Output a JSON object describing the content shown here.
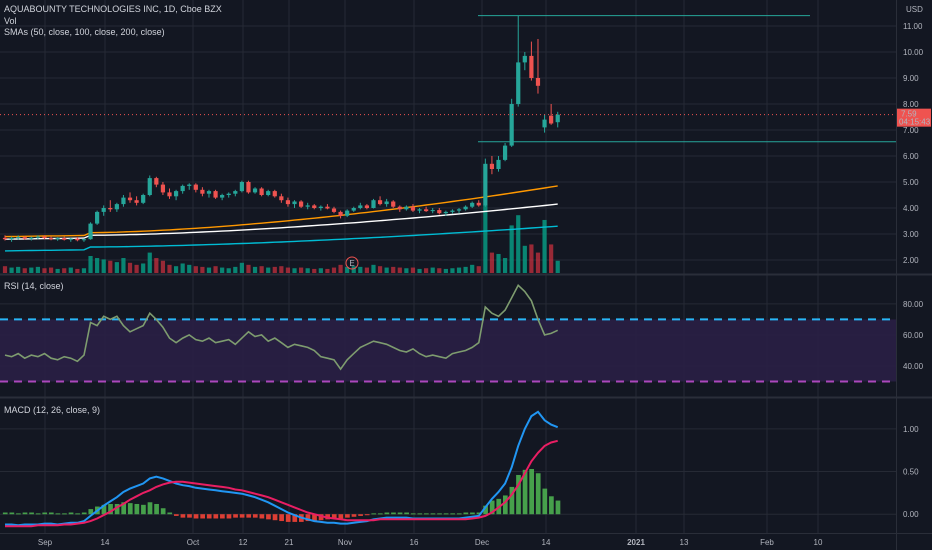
{
  "chart_data": [
    {
      "type": "candlestick",
      "pane": "price",
      "title": "AQUABOUNTY TECHNOLOGIES INC, 1D, Cboe BZX",
      "volume_label": "Vol",
      "sma_label": "SMAs (50, close, 100, close, 200, close)",
      "currency": "USD",
      "yticks": [
        "2.00",
        "3.00",
        "4.00",
        "5.00",
        "6.00",
        "7.00",
        "8.00",
        "9.00",
        "10.00",
        "11.00"
      ],
      "ylim": [
        1.5,
        12.0
      ],
      "last_price": "7.59",
      "countdown": "04:15:43",
      "earnings_marker": "E",
      "horizontal_lines": [
        11.4,
        6.55
      ],
      "candles": [
        [
          2.85,
          2.95,
          2.75,
          2.8
        ],
        [
          2.8,
          2.9,
          2.7,
          2.85
        ],
        [
          2.85,
          2.95,
          2.78,
          2.88
        ],
        [
          2.88,
          2.92,
          2.78,
          2.82
        ],
        [
          2.82,
          2.9,
          2.75,
          2.86
        ],
        [
          2.86,
          2.95,
          2.8,
          2.9
        ],
        [
          2.9,
          2.95,
          2.8,
          2.84
        ],
        [
          2.84,
          2.9,
          2.76,
          2.8
        ],
        [
          2.8,
          2.88,
          2.74,
          2.84
        ],
        [
          2.84,
          2.9,
          2.75,
          2.78
        ],
        [
          2.78,
          2.85,
          2.7,
          2.82
        ],
        [
          2.82,
          2.88,
          2.72,
          2.76
        ],
        [
          2.76,
          2.82,
          2.7,
          2.8
        ],
        [
          2.8,
          3.45,
          2.78,
          3.4
        ],
        [
          3.4,
          3.9,
          3.35,
          3.85
        ],
        [
          3.85,
          4.1,
          3.7,
          4.0
        ],
        [
          4.0,
          4.3,
          3.85,
          3.95
        ],
        [
          3.95,
          4.2,
          3.85,
          4.15
        ],
        [
          4.15,
          4.5,
          4.05,
          4.4
        ],
        [
          4.4,
          4.6,
          4.2,
          4.3
        ],
        [
          4.3,
          4.45,
          4.1,
          4.2
        ],
        [
          4.2,
          4.55,
          4.15,
          4.5
        ],
        [
          4.5,
          5.25,
          4.45,
          5.15
        ],
        [
          5.15,
          5.2,
          4.8,
          4.9
        ],
        [
          4.9,
          5.0,
          4.5,
          4.6
        ],
        [
          4.6,
          4.75,
          4.35,
          4.45
        ],
        [
          4.45,
          4.7,
          4.3,
          4.65
        ],
        [
          4.65,
          4.9,
          4.55,
          4.85
        ],
        [
          4.85,
          4.95,
          4.7,
          4.9
        ],
        [
          4.9,
          4.95,
          4.6,
          4.7
        ],
        [
          4.7,
          4.8,
          4.45,
          4.55
        ],
        [
          4.55,
          4.7,
          4.4,
          4.65
        ],
        [
          4.65,
          4.7,
          4.35,
          4.4
        ],
        [
          4.4,
          4.55,
          4.3,
          4.5
        ],
        [
          4.5,
          4.6,
          4.4,
          4.55
        ],
        [
          4.55,
          4.7,
          4.45,
          4.65
        ],
        [
          4.65,
          5.05,
          4.6,
          5.0
        ],
        [
          5.0,
          5.05,
          4.55,
          4.6
        ],
        [
          4.6,
          4.8,
          4.55,
          4.75
        ],
        [
          4.75,
          4.8,
          4.45,
          4.5
        ],
        [
          4.5,
          4.7,
          4.45,
          4.65
        ],
        [
          4.65,
          4.7,
          4.4,
          4.45
        ],
        [
          4.45,
          4.55,
          4.2,
          4.3
        ],
        [
          4.3,
          4.4,
          4.05,
          4.15
        ],
        [
          4.15,
          4.3,
          4.0,
          4.25
        ],
        [
          4.25,
          4.3,
          4.0,
          4.05
        ],
        [
          4.05,
          4.2,
          3.95,
          4.1
        ],
        [
          4.1,
          4.15,
          3.95,
          4.0
        ],
        [
          4.0,
          4.1,
          3.9,
          4.05
        ],
        [
          4.05,
          4.15,
          3.95,
          3.98
        ],
        [
          3.98,
          4.05,
          3.8,
          3.85
        ],
        [
          3.85,
          3.9,
          3.6,
          3.7
        ],
        [
          3.7,
          3.95,
          3.65,
          3.9
        ],
        [
          3.9,
          4.05,
          3.85,
          4.0
        ],
        [
          4.0,
          4.2,
          3.95,
          4.1
        ],
        [
          4.1,
          4.15,
          3.95,
          4.0
        ],
        [
          4.0,
          4.35,
          3.98,
          4.3
        ],
        [
          4.3,
          4.45,
          4.1,
          4.15
        ],
        [
          4.15,
          4.35,
          4.05,
          4.25
        ],
        [
          4.25,
          4.3,
          4.0,
          4.05
        ],
        [
          4.05,
          4.1,
          3.85,
          3.95
        ],
        [
          3.95,
          4.1,
          3.9,
          4.05
        ],
        [
          4.05,
          4.15,
          3.85,
          3.9
        ],
        [
          3.9,
          4.0,
          3.8,
          3.95
        ],
        [
          3.95,
          4.05,
          3.85,
          3.88
        ],
        [
          3.88,
          4.0,
          3.8,
          3.92
        ],
        [
          3.92,
          4.0,
          3.75,
          3.8
        ],
        [
          3.8,
          3.9,
          3.7,
          3.85
        ],
        [
          3.85,
          3.95,
          3.78,
          3.9
        ],
        [
          3.9,
          4.0,
          3.8,
          3.95
        ],
        [
          3.95,
          4.1,
          3.9,
          4.05
        ],
        [
          4.05,
          4.25,
          4.0,
          4.2
        ],
        [
          4.2,
          4.3,
          4.05,
          4.1
        ],
        [
          4.1,
          5.9,
          4.05,
          5.7
        ],
        [
          5.7,
          6.0,
          5.3,
          5.5
        ],
        [
          5.5,
          6.0,
          5.4,
          5.85
        ],
        [
          5.85,
          6.5,
          5.8,
          6.4
        ],
        [
          6.4,
          8.2,
          6.35,
          8.0
        ],
        [
          8.0,
          11.4,
          7.9,
          9.6
        ],
        [
          9.6,
          10.0,
          9.3,
          9.85
        ],
        [
          9.85,
          10.4,
          8.9,
          9.0
        ],
        [
          9.0,
          10.5,
          8.4,
          8.7
        ],
        [
          7.1,
          7.6,
          6.9,
          7.4
        ],
        [
          7.55,
          8.0,
          7.2,
          7.25
        ],
        [
          7.3,
          7.7,
          7.1,
          7.59
        ]
      ],
      "sma_series": [
        {
          "color": "#ff9800",
          "start": [
            2.9,
            3.05
          ],
          "end_value": 4.85
        },
        {
          "color": "#ffffff",
          "start": [
            2.8,
            2.95
          ],
          "end_value": 4.15
        },
        {
          "color": "#00bcd4",
          "start": [
            2.35,
            2.5
          ],
          "end_value": 3.3
        }
      ],
      "volume": [
        0.1,
        0.08,
        0.09,
        0.07,
        0.08,
        0.09,
        0.07,
        0.08,
        0.06,
        0.07,
        0.08,
        0.06,
        0.07,
        0.25,
        0.22,
        0.2,
        0.18,
        0.16,
        0.22,
        0.15,
        0.12,
        0.14,
        0.3,
        0.22,
        0.18,
        0.12,
        0.1,
        0.14,
        0.12,
        0.1,
        0.09,
        0.08,
        0.1,
        0.08,
        0.07,
        0.09,
        0.15,
        0.12,
        0.09,
        0.1,
        0.08,
        0.09,
        0.1,
        0.08,
        0.07,
        0.08,
        0.07,
        0.06,
        0.07,
        0.06,
        0.08,
        0.12,
        0.09,
        0.1,
        0.09,
        0.08,
        0.12,
        0.1,
        0.08,
        0.09,
        0.08,
        0.07,
        0.08,
        0.06,
        0.07,
        0.08,
        0.07,
        0.06,
        0.07,
        0.08,
        0.09,
        0.12,
        0.1,
        1.0,
        0.3,
        0.28,
        0.22,
        0.7,
        0.85,
        0.4,
        0.42,
        0.3,
        0.78,
        0.42,
        0.18
      ]
    },
    {
      "type": "line",
      "pane": "rsi",
      "title": "RSI (14, close)",
      "yticks": [
        "40.00",
        "60.00",
        "80.00"
      ],
      "ylim": [
        20,
        98
      ],
      "bands": [
        30,
        70
      ],
      "values": [
        47,
        46,
        48,
        45,
        47,
        46,
        48,
        45,
        44,
        46,
        45,
        43,
        47,
        68,
        66,
        72,
        70,
        72,
        66,
        62,
        64,
        66,
        74,
        70,
        65,
        58,
        55,
        58,
        60,
        57,
        56,
        58,
        55,
        56,
        57,
        54,
        58,
        62,
        59,
        60,
        56,
        58,
        55,
        52,
        54,
        53,
        52,
        50,
        46,
        45,
        44,
        38,
        44,
        48,
        52,
        54,
        56,
        55,
        54,
        52,
        50,
        49,
        51,
        48,
        46,
        47,
        46,
        45,
        48,
        49,
        50,
        52,
        55,
        78,
        74,
        72,
        76,
        84,
        92,
        88,
        82,
        70,
        60,
        61,
        63
      ]
    },
    {
      "type": "line",
      "pane": "macd",
      "title": "MACD (12, 26, close, 9)",
      "yticks": [
        "0.00",
        "0.50",
        "1.00"
      ],
      "ylim": [
        -0.22,
        1.35
      ],
      "macd_color": "#2196f3",
      "signal_color": "#e91e63",
      "macd": [
        -0.12,
        -0.12,
        -0.13,
        -0.12,
        -0.12,
        -0.12,
        -0.11,
        -0.11,
        -0.12,
        -0.11,
        -0.1,
        -0.1,
        -0.08,
        -0.02,
        0.04,
        0.1,
        0.15,
        0.2,
        0.26,
        0.3,
        0.33,
        0.36,
        0.42,
        0.44,
        0.42,
        0.39,
        0.36,
        0.34,
        0.33,
        0.31,
        0.3,
        0.29,
        0.28,
        0.27,
        0.26,
        0.25,
        0.24,
        0.22,
        0.2,
        0.17,
        0.14,
        0.1,
        0.06,
        0.02,
        -0.01,
        -0.04,
        -0.06,
        -0.08,
        -0.09,
        -0.1,
        -0.1,
        -0.11,
        -0.11,
        -0.1,
        -0.09,
        -0.08,
        -0.06,
        -0.05,
        -0.04,
        -0.04,
        -0.04,
        -0.04,
        -0.05,
        -0.05,
        -0.05,
        -0.05,
        -0.05,
        -0.05,
        -0.05,
        -0.05,
        -0.04,
        -0.03,
        -0.02,
        0.08,
        0.18,
        0.26,
        0.36,
        0.55,
        0.8,
        1.0,
        1.15,
        1.2,
        1.1,
        1.05,
        1.02
      ],
      "signal": [
        -0.14,
        -0.14,
        -0.14,
        -0.14,
        -0.14,
        -0.13,
        -0.13,
        -0.13,
        -0.13,
        -0.12,
        -0.12,
        -0.11,
        -0.1,
        -0.08,
        -0.05,
        -0.01,
        0.03,
        0.08,
        0.12,
        0.17,
        0.21,
        0.25,
        0.28,
        0.32,
        0.35,
        0.37,
        0.38,
        0.38,
        0.37,
        0.36,
        0.35,
        0.34,
        0.33,
        0.32,
        0.31,
        0.29,
        0.28,
        0.26,
        0.24,
        0.22,
        0.2,
        0.17,
        0.14,
        0.11,
        0.08,
        0.05,
        0.02,
        0.0,
        -0.02,
        -0.04,
        -0.05,
        -0.06,
        -0.07,
        -0.07,
        -0.07,
        -0.07,
        -0.07,
        -0.06,
        -0.06,
        -0.06,
        -0.06,
        -0.06,
        -0.06,
        -0.06,
        -0.06,
        -0.06,
        -0.06,
        -0.06,
        -0.06,
        -0.06,
        -0.06,
        -0.05,
        -0.04,
        -0.02,
        0.02,
        0.08,
        0.14,
        0.23,
        0.34,
        0.48,
        0.62,
        0.72,
        0.8,
        0.84,
        0.86
      ]
    }
  ],
  "time_axis": {
    "labels": [
      "Sep",
      "14",
      "Oct",
      "12",
      "21",
      "Nov",
      "16",
      "Dec",
      "14",
      "2021",
      "13",
      "Feb",
      "10"
    ],
    "bold": [
      "2021"
    ]
  },
  "colors": {
    "background": "#131722",
    "up": "#26a69a",
    "down": "#ef5350",
    "volume_up": "#089981",
    "volume_down": "#f23645",
    "rsi_line": "#7e9c6f",
    "rsi_band": "#2a1f45",
    "rsi_dash_upper": "#29b6f6",
    "rsi_dash_lower": "#ab47bc",
    "hist_up": "#4caf50",
    "hist_down": "#f44336",
    "hline": "#26a69a",
    "price_tag": "#ef5350"
  }
}
